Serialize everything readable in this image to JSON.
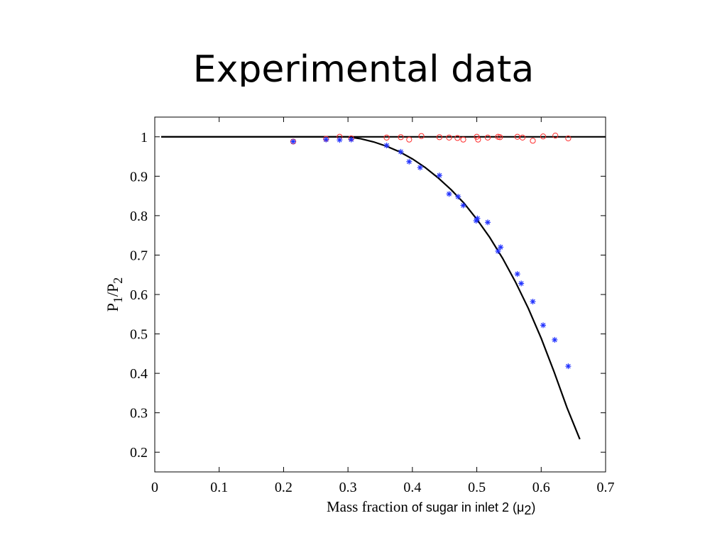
{
  "slide": {
    "title": "Experimental data"
  },
  "chart_data": {
    "type": "scatter",
    "title": "",
    "ylabel": {
      "main1": "P",
      "sub1": "1",
      "main2": "/P",
      "sub2": "2"
    },
    "xlabel": {
      "part1": "Mass fraction",
      "part2": " of sugar in inlet 2 (μ",
      "sub": "2",
      "part3": ")"
    },
    "xlim": [
      0,
      0.7
    ],
    "ylim": [
      0.15,
      1.05
    ],
    "xticks": [
      0,
      0.1,
      0.2,
      0.3,
      0.4,
      0.5,
      0.6,
      0.7
    ],
    "xtick_labels": [
      "0",
      "0.1",
      "0.2",
      "0.3",
      "0.4",
      "0.5",
      "0.6",
      "0.7"
    ],
    "yticks": [
      0.2,
      0.3,
      0.4,
      0.5,
      0.6,
      0.7,
      0.8,
      0.9,
      1
    ],
    "ytick_labels": [
      "0.2",
      "0.3",
      "0.4",
      "0.5",
      "0.6",
      "0.7",
      "0.8",
      "0.9",
      "1"
    ],
    "grid": false,
    "series": [
      {
        "marker": "circle",
        "color": "#ff2a2a",
        "x": [
          0.215,
          0.266,
          0.287,
          0.305,
          0.36,
          0.382,
          0.395,
          0.414,
          0.442,
          0.457,
          0.47,
          0.479,
          0.5,
          0.502,
          0.517,
          0.533,
          0.536,
          0.563,
          0.571,
          0.587,
          0.603,
          0.622,
          0.642
        ],
        "y": [
          0.988,
          0.995,
          1.0,
          0.996,
          0.998,
          0.999,
          0.993,
          1.002,
          0.999,
          0.998,
          0.997,
          0.993,
          1.0,
          0.993,
          0.998,
          1.0,
          0.999,
          1.0,
          0.998,
          0.99,
          1.001,
          1.003,
          0.996
        ]
      },
      {
        "marker": "asterisk",
        "color": "#2233ff",
        "x": [
          0.215,
          0.266,
          0.287,
          0.305,
          0.36,
          0.382,
          0.395,
          0.412,
          0.442,
          0.457,
          0.471,
          0.479,
          0.499,
          0.501,
          0.517,
          0.533,
          0.537,
          0.563,
          0.569,
          0.587,
          0.603,
          0.621,
          0.642
        ],
        "y": [
          0.988,
          0.993,
          0.992,
          0.993,
          0.978,
          0.962,
          0.937,
          0.922,
          0.902,
          0.855,
          0.848,
          0.826,
          0.787,
          0.793,
          0.783,
          0.71,
          0.72,
          0.652,
          0.628,
          0.582,
          0.522,
          0.485,
          0.418
        ]
      },
      {
        "type": "line",
        "color": "#000000",
        "x": [
          0.01,
          0.3,
          0.32,
          0.34,
          0.36,
          0.38,
          0.4,
          0.42,
          0.44,
          0.46,
          0.48,
          0.5,
          0.52,
          0.54,
          0.56,
          0.58,
          0.6,
          0.62,
          0.64,
          0.66
        ],
        "y": [
          1.0,
          1.0,
          0.995,
          0.987,
          0.976,
          0.962,
          0.944,
          0.922,
          0.896,
          0.866,
          0.832,
          0.791,
          0.745,
          0.692,
          0.632,
          0.565,
          0.489,
          0.404,
          0.313,
          0.233
        ]
      },
      {
        "type": "line",
        "color": "#000000",
        "x": [
          0.01,
          0.7
        ],
        "y": [
          1.0,
          1.0
        ]
      }
    ]
  }
}
